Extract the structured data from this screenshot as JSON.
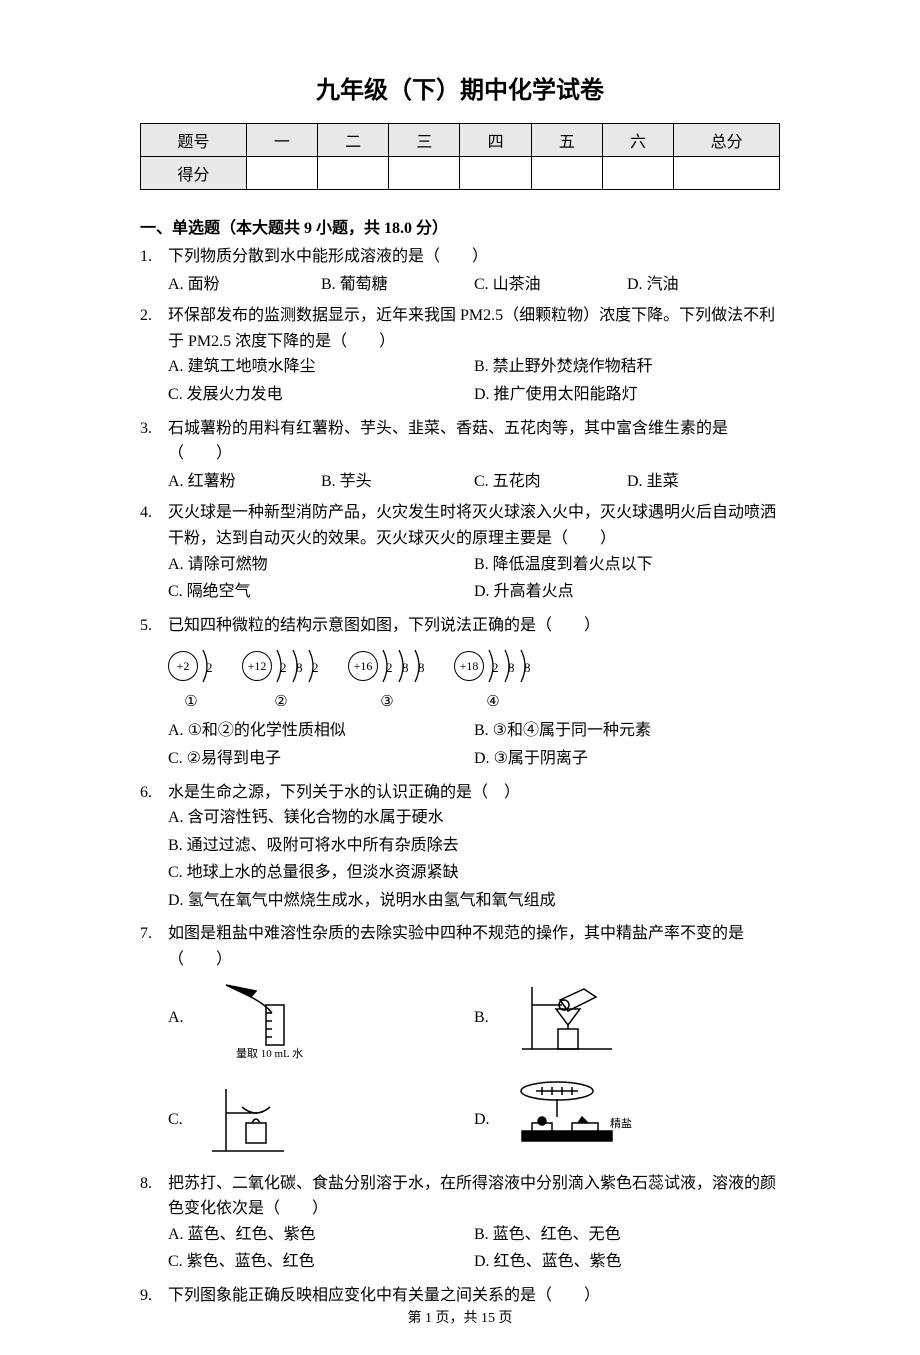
{
  "page": {
    "title": "九年级（下）期中化学试卷",
    "footer": "第 1 页，共 15 页"
  },
  "score_table": {
    "headers": [
      "题号",
      "一",
      "二",
      "三",
      "四",
      "五",
      "六",
      "总分"
    ],
    "row_label": "得分"
  },
  "section1": {
    "heading": "一、单选题（本大题共 9 小题，共 18.0 分）"
  },
  "questions": [
    {
      "num": "1.",
      "stem": "下列物质分散到水中能形成溶液的是（　　）",
      "layout": "row4",
      "options": [
        {
          "label": "A.",
          "text": "面粉"
        },
        {
          "label": "B.",
          "text": "葡萄糖"
        },
        {
          "label": "C.",
          "text": "山茶油"
        },
        {
          "label": "D.",
          "text": "汽油"
        }
      ]
    },
    {
      "num": "2.",
      "stem": "环保部发布的监测数据显示，近年来我国 PM2.5（细颗粒物）浓度下降。下列做法不利于 PM2.5 浓度下降的是（　　）",
      "layout": "col2",
      "options": [
        {
          "label": "A.",
          "text": "建筑工地喷水降尘"
        },
        {
          "label": "B.",
          "text": "禁止野外焚烧作物秸秆"
        },
        {
          "label": "C.",
          "text": "发展火力发电"
        },
        {
          "label": "D.",
          "text": "推广使用太阳能路灯"
        }
      ]
    },
    {
      "num": "3.",
      "stem": "石城薯粉的用料有红薯粉、芋头、韭菜、香菇、五花肉等，其中富含维生素的是（　　）",
      "layout": "row4",
      "options": [
        {
          "label": "A.",
          "text": "红薯粉"
        },
        {
          "label": "B.",
          "text": "芋头"
        },
        {
          "label": "C.",
          "text": "五花肉"
        },
        {
          "label": "D.",
          "text": "韭菜"
        }
      ]
    },
    {
      "num": "4.",
      "stem": "灭火球是一种新型消防产品，火灾发生时将灭火球滚入火中，灭火球遇明火后自动喷洒干粉，达到自动灭火的效果。灭火球灭火的原理主要是（　　）",
      "layout": "col2",
      "options": [
        {
          "label": "A.",
          "text": "请除可燃物"
        },
        {
          "label": "B.",
          "text": "降低温度到着火点以下"
        },
        {
          "label": "C.",
          "text": "隔绝空气"
        },
        {
          "label": "D.",
          "text": "升高着火点"
        }
      ]
    },
    {
      "num": "5.",
      "stem": "已知四种微粒的结构示意图如图，下列说法正确的是（　　）",
      "layout": "col2",
      "atoms": [
        {
          "nucleus": "+2",
          "shells": [
            "2"
          ],
          "label": "①"
        },
        {
          "nucleus": "+12",
          "shells": [
            "2",
            "8",
            "2"
          ],
          "label": "②"
        },
        {
          "nucleus": "+16",
          "shells": [
            "2",
            "8",
            "8"
          ],
          "label": "③"
        },
        {
          "nucleus": "+18",
          "shells": [
            "2",
            "8",
            "8"
          ],
          "label": "④"
        }
      ],
      "options": [
        {
          "label": "A.",
          "text": "①和②的化学性质相似"
        },
        {
          "label": "B.",
          "text": "③和④属于同一种元素"
        },
        {
          "label": "C.",
          "text": "②易得到电子"
        },
        {
          "label": "D.",
          "text": "③属于阴离子"
        }
      ]
    },
    {
      "num": "6.",
      "stem": "水是生命之源，下列关于水的认识正确的是（　）",
      "layout": "stack",
      "options": [
        {
          "label": "A.",
          "text": "含可溶性钙、镁化合物的水属于硬水"
        },
        {
          "label": "B.",
          "text": "通过过滤、吸附可将水中所有杂质除去"
        },
        {
          "label": "C.",
          "text": "地球上水的总量很多，但淡水资源紧缺"
        },
        {
          "label": "D.",
          "text": "氢气在氧气中燃烧生成水，说明水由氢气和氧气组成"
        }
      ]
    },
    {
      "num": "7.",
      "stem": "如图是粗盐中难溶性杂质的去除实验中四种不规范的操作，其中精盐产率不变的是（　　）",
      "layout": "images",
      "options": [
        {
          "label": "A.",
          "caption": "量取 10 mL 水"
        },
        {
          "label": "B.",
          "caption": ""
        },
        {
          "label": "C.",
          "caption": ""
        },
        {
          "label": "D.",
          "caption": "精盐"
        }
      ]
    },
    {
      "num": "8.",
      "stem": "把苏打、二氧化碳、食盐分别溶于水，在所得溶液中分别滴入紫色石蕊试液，溶液的颜色变化依次是（　　）",
      "layout": "col2",
      "options": [
        {
          "label": "A.",
          "text": "蓝色、红色、紫色"
        },
        {
          "label": "B.",
          "text": "蓝色、红色、无色"
        },
        {
          "label": "C.",
          "text": "紫色、蓝色、红色"
        },
        {
          "label": "D.",
          "text": "红色、蓝色、紫色"
        }
      ]
    },
    {
      "num": "9.",
      "stem": "下列图象能正确反映相应变化中有关量之间关系的是（　　）"
    }
  ]
}
